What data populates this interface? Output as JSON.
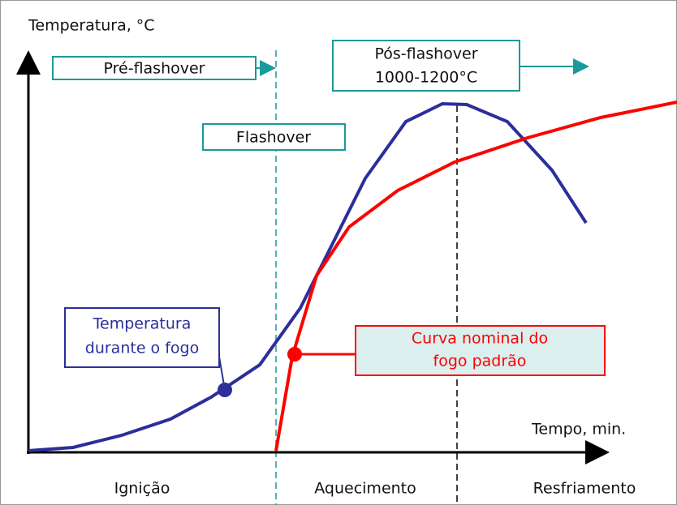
{
  "axis_labels": {
    "y": "Temperatura, °C",
    "x": "Tempo, min."
  },
  "phases": {
    "pre": "Pré-flashover",
    "pos": [
      "Pós-flashover",
      "1000-1200°C"
    ],
    "flashover": "Flashover"
  },
  "legends": {
    "fire": [
      "Temperatura",
      "durante o fogo"
    ],
    "nominal": [
      "Curva nominal do",
      "fogo padrão"
    ]
  },
  "stages": [
    "Ignição",
    "Aquecimento",
    "Resfriamento"
  ]
}
